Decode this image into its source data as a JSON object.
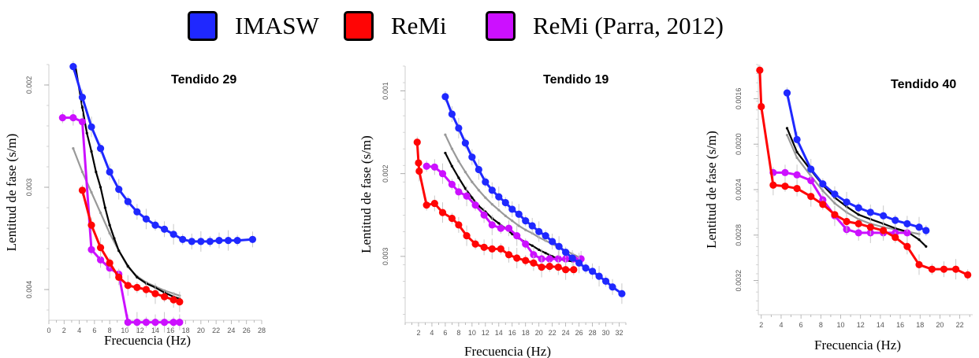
{
  "legend": [
    {
      "label": "IMASW",
      "color": "#1f28ff"
    },
    {
      "label": "ReMi",
      "color": "#ff0505"
    },
    {
      "label": "ReMi (Parra, 2012)",
      "color": "#cc10ff"
    }
  ],
  "chart_data": [
    {
      "type": "line",
      "title": "Tendido 29",
      "xlabel": "Frecuencia (Hz)",
      "ylabel": "Lentitud de fase (s/m)",
      "xlim": [
        0,
        28
      ],
      "ylim": [
        0.0018,
        0.0043
      ],
      "y_inverted": true,
      "xticks": [
        0,
        2,
        4,
        6,
        8,
        10,
        12,
        14,
        16,
        18,
        20,
        22,
        24,
        26,
        28
      ],
      "yticks": [
        0.002,
        0.003,
        0.004
      ],
      "ytick_labels": [
        "0.002",
        "0.003",
        "0.004"
      ],
      "series": [
        {
          "name": "IMASW",
          "color": "#1f28ff",
          "x": [
            3.2,
            4.4,
            5.6,
            6.8,
            8,
            9.2,
            10.4,
            11.6,
            12.8,
            14,
            15.2,
            16.4,
            17.6,
            18.8,
            20,
            21.2,
            22.4,
            23.6,
            24.8,
            26.8
          ],
          "y": [
            0.00182,
            0.00212,
            0.00241,
            0.00262,
            0.00285,
            0.00302,
            0.00314,
            0.00324,
            0.00331,
            0.00337,
            0.00341,
            0.00346,
            0.00351,
            0.00353,
            0.00353,
            0.00353,
            0.00352,
            0.00352,
            0.00352,
            0.00351
          ]
        },
        {
          "name": "ReMi",
          "color": "#ff0505",
          "x": [
            4.4,
            5.6,
            6.8,
            8,
            9.2,
            10.4,
            11.6,
            12.8,
            14,
            15.2,
            16.4,
            17.2
          ],
          "y": [
            0.00303,
            0.00337,
            0.00359,
            0.00374,
            0.00388,
            0.00396,
            0.00398,
            0.004,
            0.00404,
            0.00407,
            0.0041,
            0.00412
          ]
        },
        {
          "name": "ReMi (Parra, 2012)",
          "color": "#cc10ff",
          "x": [
            1.8,
            3.2,
            4.4,
            5.6,
            6.8,
            8,
            9.2,
            10.4,
            11.6,
            12.8,
            14,
            15.2,
            16.4,
            17.2
          ],
          "y": [
            0.00232,
            0.00232,
            0.00236,
            0.00361,
            0.00371,
            0.00379,
            0.00385,
            0.00432,
            0.00432,
            0.00432,
            0.00432,
            0.00432,
            0.00432,
            0.00432
          ]
        },
        {
          "color": "#000000",
          "x": [
            3.5,
            4.4,
            5,
            5.6,
            6.2,
            6.8,
            7.4,
            8,
            8.6,
            9.2,
            10.4,
            11.6,
            12.8,
            14,
            15.2,
            16.4,
            17.2
          ],
          "y": [
            0.00182,
            0.00222,
            0.00247,
            0.00265,
            0.00285,
            0.003,
            0.0032,
            0.00337,
            0.0035,
            0.00362,
            0.00377,
            0.00388,
            0.00394,
            0.00398,
            0.00403,
            0.00407,
            0.00409
          ]
        },
        {
          "color": "#999999",
          "x": [
            3.2,
            4.4,
            5.6,
            6.8,
            8,
            9.2,
            10.4,
            11.6,
            12.8,
            14,
            15.2,
            16.4,
            17.2
          ],
          "y": [
            0.00262,
            0.00285,
            0.00305,
            0.00325,
            0.00345,
            0.00362,
            0.00378,
            0.00387,
            0.00393,
            0.00397,
            0.00401,
            0.00404,
            0.00406
          ]
        }
      ]
    },
    {
      "type": "line",
      "title": "Tendido 19",
      "xlabel": "Frecuencia (Hz)",
      "ylabel": "Lentitud de fase (s/m)",
      "xlim": [
        0,
        33
      ],
      "ylim": [
        0.0007,
        0.0038
      ],
      "y_inverted": true,
      "xticks": [
        2,
        4,
        6,
        8,
        10,
        12,
        14,
        16,
        18,
        20,
        22,
        24,
        26,
        28,
        30,
        32
      ],
      "yticks": [
        0.001,
        0.002,
        0.003
      ],
      "ytick_labels": [
        "0.001",
        "0.002",
        "0.003"
      ],
      "series": [
        {
          "name": "IMASW",
          "color": "#1f28ff",
          "x": [
            6,
            7,
            8,
            9,
            10,
            11,
            12,
            13,
            14,
            15,
            16,
            17,
            18,
            19,
            20,
            21,
            22,
            23,
            24,
            25,
            26,
            27,
            28,
            29,
            30,
            31,
            32.4
          ],
          "y": [
            0.00107,
            0.00128,
            0.00145,
            0.00163,
            0.0018,
            0.00195,
            0.0021,
            0.0022,
            0.00228,
            0.00235,
            0.00243,
            0.00249,
            0.00257,
            0.00263,
            0.0027,
            0.00275,
            0.00282,
            0.00288,
            0.00295,
            0.00302,
            0.00308,
            0.00314,
            0.00318,
            0.00324,
            0.0033,
            0.00337,
            0.00345
          ]
        },
        {
          "name": "ReMi",
          "color": "#ff0505",
          "x": [
            1.8,
            2,
            2.1,
            3.2,
            4.4,
            5.6,
            7,
            8,
            9.2,
            10.5,
            11.8,
            13,
            14.3,
            15.5,
            16.7,
            18,
            19.2,
            20.4,
            21.6,
            22.9,
            24,
            25.2
          ],
          "y": [
            0.00162,
            0.00187,
            0.00197,
            0.00238,
            0.00236,
            0.00247,
            0.00254,
            0.00262,
            0.00275,
            0.00285,
            0.00289,
            0.00291,
            0.00291,
            0.00298,
            0.00302,
            0.00305,
            0.00308,
            0.00313,
            0.00312,
            0.00313,
            0.00316,
            0.00316
          ]
        },
        {
          "name": "ReMi (Parra, 2012)",
          "color": "#cc10ff",
          "x": [
            3.2,
            4.4,
            5.6,
            7,
            8,
            9.2,
            10.5,
            11.8,
            13,
            14.3,
            15.5,
            16.7,
            18,
            19.2,
            20.4,
            21.6,
            22.9,
            24,
            25.2,
            26.3
          ],
          "y": [
            0.00191,
            0.00192,
            0.002,
            0.00213,
            0.00222,
            0.00227,
            0.00238,
            0.0025,
            0.00262,
            0.00266,
            0.00266,
            0.00275,
            0.00285,
            0.00298,
            0.00303,
            0.00303,
            0.00303,
            0.00303,
            0.00303,
            0.00303
          ]
        },
        {
          "color": "#000000",
          "x": [
            6,
            7,
            8,
            9,
            10,
            11,
            12,
            13,
            14,
            15,
            16,
            17,
            18,
            19,
            20,
            21,
            22,
            23,
            24,
            25,
            26
          ],
          "y": [
            0.00175,
            0.00191,
            0.00205,
            0.00218,
            0.00229,
            0.00239,
            0.00246,
            0.00254,
            0.0026,
            0.00266,
            0.00273,
            0.00278,
            0.00283,
            0.00287,
            0.00292,
            0.00296,
            0.003,
            0.00303,
            0.00305,
            0.00306,
            0.00304
          ]
        },
        {
          "color": "#999999",
          "x": [
            6,
            7,
            8,
            9,
            10,
            11,
            12,
            13,
            14,
            15,
            16,
            17,
            18,
            19,
            20,
            21,
            22,
            23,
            24,
            25,
            26,
            26.3
          ],
          "y": [
            0.00153,
            0.0017,
            0.00185,
            0.00198,
            0.0021,
            0.0022,
            0.00229,
            0.00237,
            0.00244,
            0.00251,
            0.00257,
            0.00263,
            0.00268,
            0.00272,
            0.00277,
            0.00281,
            0.00285,
            0.00289,
            0.00293,
            0.00297,
            0.00301,
            0.00302
          ]
        }
      ]
    },
    {
      "type": "line",
      "title": "Tendido 40",
      "xlabel": "Frecuencia (Hz)",
      "ylabel": "Lentitud de fase (s/m)",
      "xlim": [
        1.7,
        23.3
      ],
      "ylim": [
        0.0013,
        0.0035
      ],
      "y_inverted": true,
      "xticks": [
        2,
        4,
        6,
        8,
        10,
        12,
        14,
        16,
        18,
        20,
        22
      ],
      "yticks": [
        0.0016,
        0.002,
        0.0024,
        0.0028,
        0.0032
      ],
      "ytick_labels": [
        "0.0016",
        "0.0020",
        "0.0024",
        "0.0028",
        "0.0032"
      ],
      "series": [
        {
          "name": "IMASW",
          "color": "#1f28ff",
          "x": [
            4.6,
            5.6,
            7,
            8.2,
            9.4,
            10.6,
            11.8,
            13,
            14.3,
            15.5,
            16.7,
            17.9,
            18.6
          ],
          "y": [
            0.00155,
            0.00196,
            0.00222,
            0.00235,
            0.00244,
            0.00251,
            0.00256,
            0.0026,
            0.00263,
            0.00267,
            0.0027,
            0.00273,
            0.00276
          ]
        },
        {
          "name": "ReMi",
          "color": "#ff0505",
          "x": [
            1.85,
            2,
            3.2,
            4.4,
            5.6,
            7,
            8.2,
            9.4,
            10.6,
            11.8,
            13,
            14.3,
            15.5,
            16.7,
            17.9,
            19.2,
            20.4,
            21.6,
            22.8
          ],
          "y": [
            0.00135,
            0.00167,
            0.00236,
            0.00237,
            0.00239,
            0.00246,
            0.00253,
            0.00262,
            0.00268,
            0.0027,
            0.00273,
            0.00276,
            0.00282,
            0.0029,
            0.00306,
            0.0031,
            0.0031,
            0.0031,
            0.00315
          ]
        },
        {
          "name": "ReMi (Parra, 2012)",
          "color": "#cc10ff",
          "x": [
            3.2,
            4.4,
            5.6,
            7,
            8.2,
            9.4,
            10.6,
            11.8,
            13,
            14.3,
            15.5,
            16.7
          ],
          "y": [
            0.00225,
            0.00225,
            0.00227,
            0.00232,
            0.00249,
            0.00263,
            0.00275,
            0.00278,
            0.00278,
            0.00278,
            0.00278,
            0.00278
          ]
        },
        {
          "color": "#000000",
          "x": [
            4.6,
            5.6,
            7,
            8.2,
            9.4,
            10.6,
            11.8,
            13,
            14.3,
            15.5,
            16.7,
            17.9,
            18.6
          ],
          "y": [
            0.00186,
            0.00207,
            0.00223,
            0.00236,
            0.00247,
            0.00255,
            0.00262,
            0.00266,
            0.0027,
            0.00274,
            0.00277,
            0.00284,
            0.0029
          ]
        },
        {
          "color": "#999999",
          "x": [
            4.6,
            5.6,
            7,
            8.2,
            9.4,
            10.6,
            11.8,
            13,
            14.3,
            15.5,
            16.7,
            17.9
          ],
          "y": [
            0.00192,
            0.00212,
            0.00228,
            0.00241,
            0.00252,
            0.0026,
            0.00266,
            0.0027,
            0.00273,
            0.00275,
            0.00277,
            0.00279
          ]
        }
      ]
    }
  ]
}
